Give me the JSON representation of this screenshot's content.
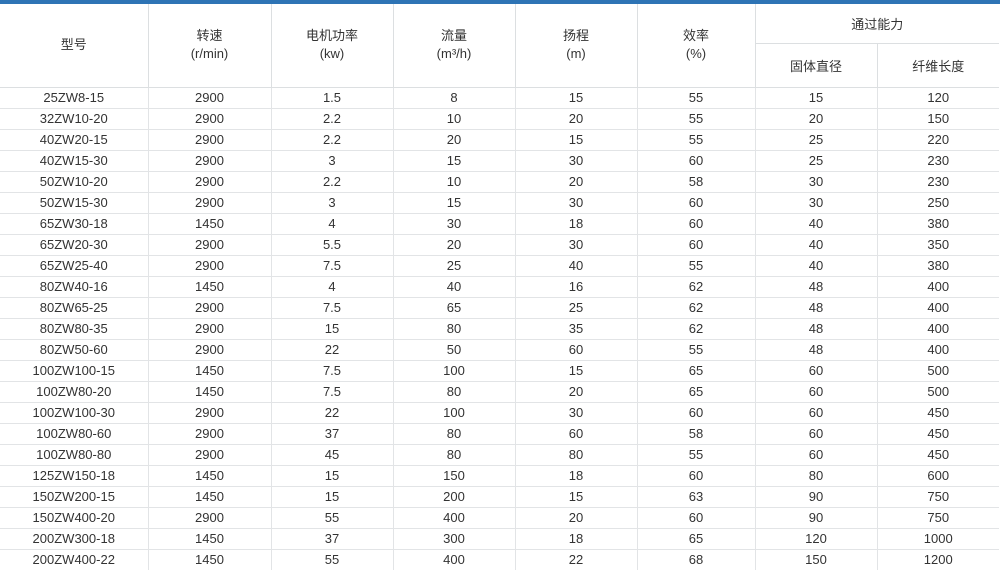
{
  "accent_color": "#2e74b5",
  "table": {
    "header": {
      "model": "型号",
      "speed": {
        "name": "转速",
        "unit": "(r/min)"
      },
      "power": {
        "name": "电机功率",
        "unit": "(kw)"
      },
      "flow": {
        "name": "流量",
        "unit": "(m³/h)"
      },
      "head": {
        "name": "扬程",
        "unit": "(m)"
      },
      "efficiency": {
        "name": "效率",
        "unit": "(%)"
      },
      "passing": {
        "group": "通过能力",
        "solid_diameter": "固体直径",
        "fiber_length": "纤维长度"
      }
    },
    "rows": [
      [
        "25ZW8-15",
        "2900",
        "1.5",
        "8",
        "15",
        "55",
        "15",
        "120"
      ],
      [
        "32ZW10-20",
        "2900",
        "2.2",
        "10",
        "20",
        "55",
        "20",
        "150"
      ],
      [
        "40ZW20-15",
        "2900",
        "2.2",
        "20",
        "15",
        "55",
        "25",
        "220"
      ],
      [
        "40ZW15-30",
        "2900",
        "3",
        "15",
        "30",
        "60",
        "25",
        "230"
      ],
      [
        "50ZW10-20",
        "2900",
        "2.2",
        "10",
        "20",
        "58",
        "30",
        "230"
      ],
      [
        "50ZW15-30",
        "2900",
        "3",
        "15",
        "30",
        "60",
        "30",
        "250"
      ],
      [
        "65ZW30-18",
        "1450",
        "4",
        "30",
        "18",
        "60",
        "40",
        "380"
      ],
      [
        "65ZW20-30",
        "2900",
        "5.5",
        "20",
        "30",
        "60",
        "40",
        "350"
      ],
      [
        "65ZW25-40",
        "2900",
        "7.5",
        "25",
        "40",
        "55",
        "40",
        "380"
      ],
      [
        "80ZW40-16",
        "1450",
        "4",
        "40",
        "16",
        "62",
        "48",
        "400"
      ],
      [
        "80ZW65-25",
        "2900",
        "7.5",
        "65",
        "25",
        "62",
        "48",
        "400"
      ],
      [
        "80ZW80-35",
        "2900",
        "15",
        "80",
        "35",
        "62",
        "48",
        "400"
      ],
      [
        "80ZW50-60",
        "2900",
        "22",
        "50",
        "60",
        "55",
        "48",
        "400"
      ],
      [
        "100ZW100-15",
        "1450",
        "7.5",
        "100",
        "15",
        "65",
        "60",
        "500"
      ],
      [
        "100ZW80-20",
        "1450",
        "7.5",
        "80",
        "20",
        "65",
        "60",
        "500"
      ],
      [
        "100ZW100-30",
        "2900",
        "22",
        "100",
        "30",
        "60",
        "60",
        "450"
      ],
      [
        "100ZW80-60",
        "2900",
        "37",
        "80",
        "60",
        "58",
        "60",
        "450"
      ],
      [
        "100ZW80-80",
        "2900",
        "45",
        "80",
        "80",
        "55",
        "60",
        "450"
      ],
      [
        "125ZW150-18",
        "1450",
        "15",
        "150",
        "18",
        "60",
        "80",
        "600"
      ],
      [
        "150ZW200-15",
        "1450",
        "15",
        "200",
        "15",
        "63",
        "90",
        "750"
      ],
      [
        "150ZW400-20",
        "2900",
        "55",
        "400",
        "20",
        "60",
        "90",
        "750"
      ],
      [
        "200ZW300-18",
        "1450",
        "37",
        "300",
        "18",
        "65",
        "120",
        "1000"
      ],
      [
        "200ZW400-22",
        "1450",
        "55",
        "400",
        "22",
        "68",
        "150",
        "1200"
      ]
    ]
  }
}
